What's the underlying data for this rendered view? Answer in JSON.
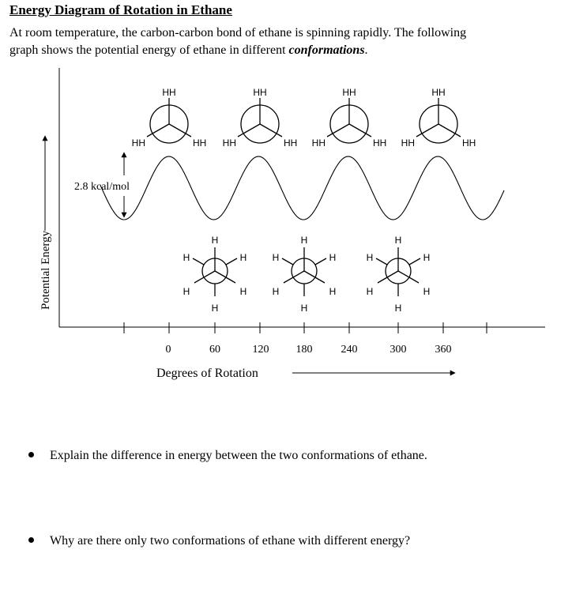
{
  "title": "Energy Diagram of Rotation in Ethane",
  "intro": {
    "line1": "At room temperature, the carbon-carbon bond of ethane is spinning rapidly.   The following",
    "line2_start": "graph shows the potential energy of ethane in different ",
    "line2_emph": "conformations",
    "line2_end": "."
  },
  "diagram": {
    "y_axis_label": "Potential Energy",
    "x_axis_label": "Degrees of Rotation",
    "energy_gap_label": "2.8 kcal/mol",
    "x_tick_labels": [
      "0",
      "60",
      "120",
      "180",
      "240",
      "300",
      "360"
    ],
    "eclipsed_labels": {
      "top": "HH",
      "left": "HH",
      "right": "HH"
    },
    "staggered_labels": {
      "h": "H"
    }
  },
  "questions": [
    "Explain the difference in energy between the two conformations of ethane.",
    "Why are there only two conformations of ethane with different energy?"
  ]
}
